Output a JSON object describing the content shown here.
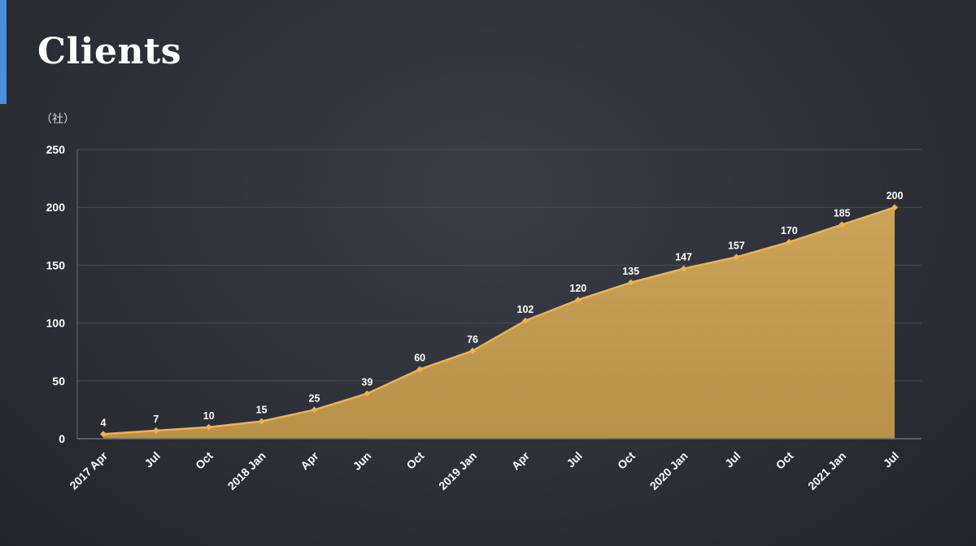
{
  "slide": {
    "title": "Clients",
    "unit_label": "（社）"
  },
  "colors": {
    "accent_bar": "#4a8fe0",
    "series_line": "#f0b24a",
    "series_fill": "#c9a052",
    "gridline": "#474a52",
    "axis": "#6b6e76"
  },
  "chart_data": {
    "type": "area",
    "title": "Clients",
    "ylabel": "（社）",
    "xlabel": "",
    "ylim": [
      0,
      250
    ],
    "yticks": [
      0,
      50,
      100,
      150,
      200,
      250
    ],
    "grid": true,
    "legend": "none",
    "categories": [
      "2017 Apr",
      "Jul",
      "Oct",
      "2018 Jan",
      "Apr",
      "Jun",
      "Oct",
      "2019 Jan",
      "Apr",
      "Jul",
      "Oct",
      "2020 Jan",
      "Jul",
      "Oct",
      "2021 Jan",
      "Jul"
    ],
    "series": [
      {
        "values": [
          4,
          7,
          10,
          15,
          25,
          39,
          60,
          76,
          102,
          120,
          135,
          147,
          157,
          170,
          185,
          200
        ]
      }
    ]
  }
}
